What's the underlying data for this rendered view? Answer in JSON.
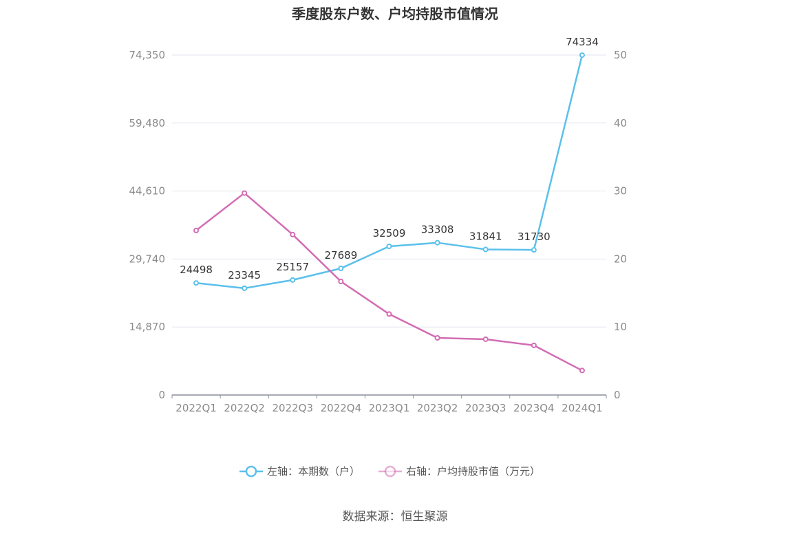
{
  "title": "季度股东户数、户均持股市值情况",
  "source": "数据来源：恒生聚源",
  "colors": {
    "left_series": "#5bc0eb",
    "right_series": "#d36cb4",
    "grid": "#e3e6ef",
    "axis": "#8a8f99"
  },
  "chart_data": {
    "type": "line",
    "categories": [
      "2022Q1",
      "2022Q2",
      "2022Q3",
      "2022Q4",
      "2023Q1",
      "2023Q2",
      "2023Q3",
      "2023Q4",
      "2024Q1"
    ],
    "left_axis": {
      "ticks": [
        "0",
        "14,870",
        "29,740",
        "44,610",
        "59,480",
        "74,350"
      ],
      "min": 0,
      "max": 74350
    },
    "right_axis": {
      "ticks": [
        "0",
        "10",
        "20",
        "30",
        "40",
        "50"
      ],
      "min": 0,
      "max": 50
    },
    "series": [
      {
        "name": "左轴：本期数（户）",
        "axis": "left",
        "values": [
          24498,
          23345,
          25157,
          27689,
          32509,
          33308,
          31841,
          31730,
          74334
        ],
        "labels": [
          "24498",
          "23345",
          "25157",
          "27689",
          "32509",
          "33308",
          "31841",
          "31730",
          "74334"
        ]
      },
      {
        "name": "右轴：户均持股市值（万元）",
        "axis": "right",
        "values": [
          24.2,
          29.7,
          23.6,
          16.7,
          11.9,
          8.4,
          8.2,
          7.3,
          3.6
        ]
      }
    ],
    "grid": true,
    "legend": "bottom-center"
  }
}
